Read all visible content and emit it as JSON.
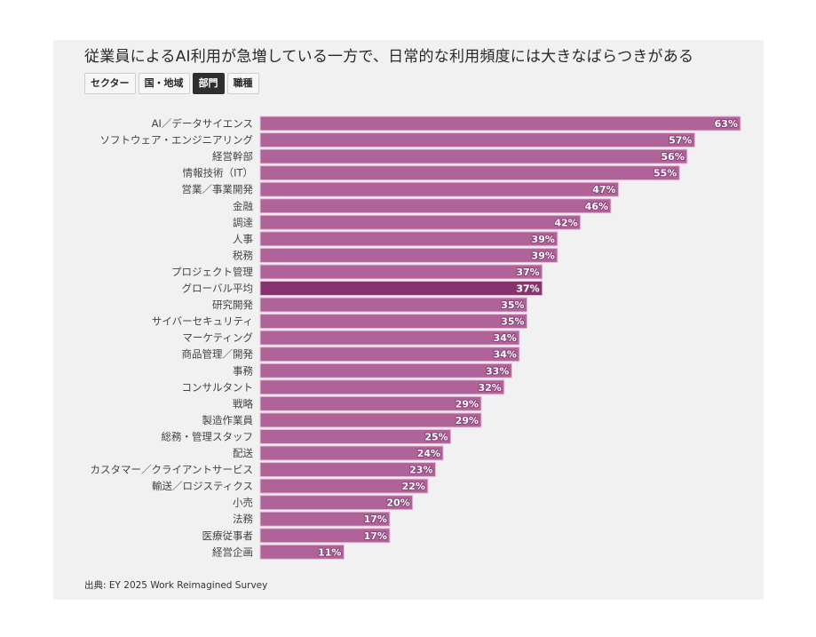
{
  "header": {
    "title": "従業員によるAI利用が急増している一方で、日常的な利用頻度には大きなばらつきがある"
  },
  "tabs": [
    {
      "label": "セクター",
      "active": false
    },
    {
      "label": "国・地域",
      "active": false
    },
    {
      "label": "部門",
      "active": true
    },
    {
      "label": "職種",
      "active": false
    }
  ],
  "chart_data": {
    "type": "bar",
    "orientation": "horizontal",
    "title": "従業員によるAI利用が急増している一方で、日常的な利用頻度には大きなばらつきがある",
    "xlabel": "",
    "ylabel": "",
    "value_suffix": "%",
    "xlim": [
      0,
      63
    ],
    "grid": false,
    "colors": {
      "bar": "#b06399",
      "highlight": "#86326f",
      "bar_outline": "#e7bfd9"
    },
    "highlight_category": "グローバル平均",
    "categories": [
      "AI／データサイエンス",
      "ソフトウェア・エンジニアリング",
      "経営幹部",
      "情報技術（IT）",
      "営業／事業開発",
      "金融",
      "調達",
      "人事",
      "税務",
      "プロジェクト管理",
      "グローバル平均",
      "研究開発",
      "サイバーセキュリティ",
      "マーケティング",
      "商品管理／開発",
      "事務",
      "コンサルタント",
      "戦略",
      "製造作業員",
      "総務・管理スタッフ",
      "配送",
      "カスタマー／クライアントサービス",
      "輸送／ロジスティクス",
      "小売",
      "法務",
      "医療従事者",
      "経営企画"
    ],
    "values": [
      63,
      57,
      56,
      55,
      47,
      46,
      42,
      39,
      39,
      37,
      37,
      35,
      35,
      34,
      34,
      33,
      32,
      29,
      29,
      25,
      24,
      23,
      22,
      20,
      17,
      17,
      11
    ]
  },
  "footer": {
    "source": "出典: EY 2025 Work Reimagined Survey"
  }
}
